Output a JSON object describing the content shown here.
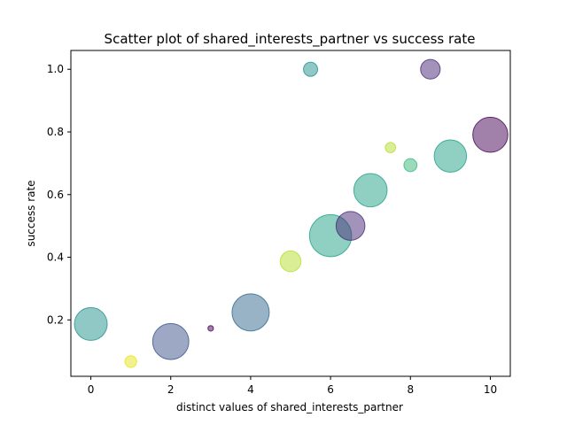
{
  "chart_data": {
    "type": "scatter",
    "title": "Scatter plot of shared_interests_partner vs success rate",
    "xlabel": "distinct values of shared_interests_partner",
    "ylabel": "success rate",
    "xlim": [
      -0.5,
      10.5
    ],
    "ylim": [
      0.02,
      1.06
    ],
    "xticks": [
      0,
      2,
      4,
      6,
      8,
      10
    ],
    "yticks": [
      0.2,
      0.4,
      0.6,
      0.8,
      1.0
    ],
    "xtick_labels": [
      "0",
      "2",
      "4",
      "6",
      "8",
      "10"
    ],
    "ytick_labels": [
      "0.2",
      "0.4",
      "0.6",
      "0.8",
      "1.0"
    ],
    "grid": false,
    "legend": null,
    "points": [
      {
        "x": 0,
        "y": 0.187,
        "size": 700,
        "color": "#21918c"
      },
      {
        "x": 1,
        "y": 0.067,
        "size": 90,
        "color": "#e8e419"
      },
      {
        "x": 2,
        "y": 0.131,
        "size": 850,
        "color": "#3b528b"
      },
      {
        "x": 3,
        "y": 0.173,
        "size": 20,
        "color": "#440154"
      },
      {
        "x": 4,
        "y": 0.224,
        "size": 900,
        "color": "#31688e"
      },
      {
        "x": 5,
        "y": 0.387,
        "size": 280,
        "color": "#b5de2b"
      },
      {
        "x": 5.5,
        "y": 1.0,
        "size": 130,
        "color": "#21918c"
      },
      {
        "x": 6,
        "y": 0.469,
        "size": 1150,
        "color": "#1fa187"
      },
      {
        "x": 6.5,
        "y": 0.5,
        "size": 540,
        "color": "#482878"
      },
      {
        "x": 7,
        "y": 0.614,
        "size": 720,
        "color": "#1fa187"
      },
      {
        "x": 7.5,
        "y": 0.75,
        "size": 70,
        "color": "#b5de2b"
      },
      {
        "x": 8,
        "y": 0.694,
        "size": 110,
        "color": "#35b779"
      },
      {
        "x": 8.5,
        "y": 1.0,
        "size": 250,
        "color": "#482878"
      },
      {
        "x": 9,
        "y": 0.723,
        "size": 680,
        "color": "#1fa187"
      },
      {
        "x": 10,
        "y": 0.791,
        "size": 800,
        "color": "#440154"
      }
    ]
  }
}
